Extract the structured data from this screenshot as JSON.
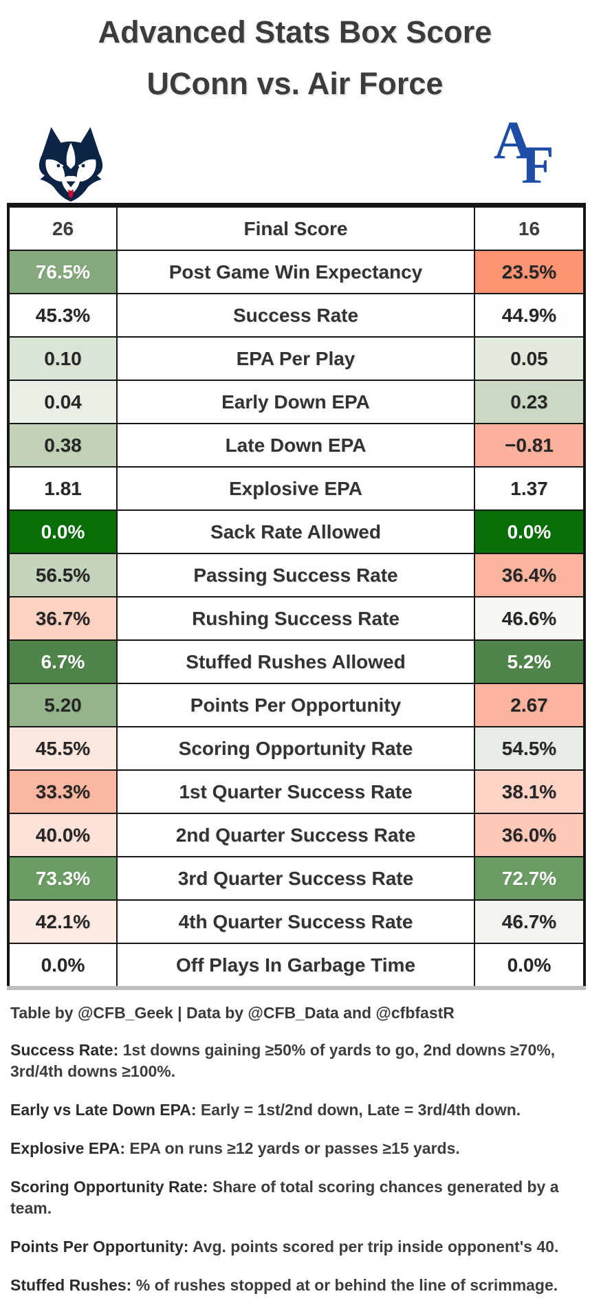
{
  "title": {
    "line1": "Advanced Stats Box Score",
    "line2": "UConn vs. Air Force"
  },
  "teams": {
    "home": {
      "name": "UConn"
    },
    "away": {
      "name": "Air Force",
      "monogram_a": "A",
      "monogram_f": "F"
    }
  },
  "colors": {
    "title_text": "#3c3c3c",
    "table_border": "#161616",
    "table_bottom_border": "#bdbdbd",
    "label_text": "#333333",
    "value_dark_text": "#262626",
    "value_light_text": "#ffffff",
    "uconn_navy": "#0e2446",
    "air_force_blue": "#1d4da6",
    "husky_red": "#cf0a2c",
    "strong_green": "#086f08",
    "medium_green": "#6b9c63",
    "strong_salmon": "#fa9473"
  },
  "table": {
    "rows": [
      {
        "metric": "Final Score",
        "home": {
          "value": "26",
          "bg": "#ffffff",
          "fg": "#3d3d3d"
        },
        "away": {
          "value": "16",
          "bg": "#ffffff",
          "fg": "#3d3d3d"
        }
      },
      {
        "metric": "Post Game Win Expectancy",
        "home": {
          "value": "76.5%",
          "bg": "#85a97d",
          "fg": "#ffffff"
        },
        "away": {
          "value": "23.5%",
          "bg": "#fa9473",
          "fg": "#262626"
        }
      },
      {
        "metric": "Success Rate",
        "home": {
          "value": "45.3%",
          "bg": "#fffdfc",
          "fg": "#262626"
        },
        "away": {
          "value": "44.9%",
          "bg": "#fefefd",
          "fg": "#262626"
        }
      },
      {
        "metric": "EPA Per Play",
        "home": {
          "value": "0.10",
          "bg": "#dbe5d5",
          "fg": "#262626"
        },
        "away": {
          "value": "0.05",
          "bg": "#e3ebde",
          "fg": "#262626"
        }
      },
      {
        "metric": "Early Down EPA",
        "home": {
          "value": "0.04",
          "bg": "#eaf0e6",
          "fg": "#262626"
        },
        "away": {
          "value": "0.23",
          "bg": "#cbd9c4",
          "fg": "#262626"
        }
      },
      {
        "metric": "Late Down EPA",
        "home": {
          "value": "0.38",
          "bg": "#c2d2b9",
          "fg": "#262626"
        },
        "away": {
          "value": "−0.81",
          "bg": "#fbb19b",
          "fg": "#262626"
        }
      },
      {
        "metric": "Explosive EPA",
        "home": {
          "value": "1.81",
          "bg": "#ffffff",
          "fg": "#262626"
        },
        "away": {
          "value": "1.37",
          "bg": "#ffffff",
          "fg": "#262626"
        }
      },
      {
        "metric": "Sack Rate Allowed",
        "home": {
          "value": "0.0%",
          "bg": "#086f08",
          "fg": "#ffffff"
        },
        "away": {
          "value": "0.0%",
          "bg": "#086f08",
          "fg": "#ffffff"
        }
      },
      {
        "metric": "Passing Success Rate",
        "home": {
          "value": "56.5%",
          "bg": "#c5d4bc",
          "fg": "#262626"
        },
        "away": {
          "value": "36.4%",
          "bg": "#fbb59f",
          "fg": "#262626"
        }
      },
      {
        "metric": "Rushing Success Rate",
        "home": {
          "value": "36.7%",
          "bg": "#fcd2c3",
          "fg": "#262626"
        },
        "away": {
          "value": "46.6%",
          "bg": "#f7f7f4",
          "fg": "#262626"
        }
      },
      {
        "metric": "Stuffed Rushes Allowed",
        "home": {
          "value": "6.7%",
          "bg": "#4f8549",
          "fg": "#ffffff"
        },
        "away": {
          "value": "5.2%",
          "bg": "#4f8549",
          "fg": "#ffffff"
        }
      },
      {
        "metric": "Points Per Opportunity",
        "home": {
          "value": "5.20",
          "bg": "#94b48b",
          "fg": "#262626"
        },
        "away": {
          "value": "2.67",
          "bg": "#fbb49e",
          "fg": "#262626"
        }
      },
      {
        "metric": "Scoring Opportunity Rate",
        "home": {
          "value": "45.5%",
          "bg": "#fde8e0",
          "fg": "#262626"
        },
        "away": {
          "value": "54.5%",
          "bg": "#e7ece4",
          "fg": "#262626"
        }
      },
      {
        "metric": "1st Quarter Success Rate",
        "home": {
          "value": "33.3%",
          "bg": "#fbb7a1",
          "fg": "#262626"
        },
        "away": {
          "value": "38.1%",
          "bg": "#fdd3c6",
          "fg": "#262626"
        }
      },
      {
        "metric": "2nd Quarter Success Rate",
        "home": {
          "value": "40.0%",
          "bg": "#fce2d9",
          "fg": "#262626"
        },
        "away": {
          "value": "36.0%",
          "bg": "#fcc8b7",
          "fg": "#262626"
        }
      },
      {
        "metric": "3rd Quarter Success Rate",
        "home": {
          "value": "73.3%",
          "bg": "#6b9c63",
          "fg": "#ffffff"
        },
        "away": {
          "value": "72.7%",
          "bg": "#6b9c63",
          "fg": "#ffffff"
        }
      },
      {
        "metric": "4th Quarter Success Rate",
        "home": {
          "value": "42.1%",
          "bg": "#fdeae2",
          "fg": "#262626"
        },
        "away": {
          "value": "46.7%",
          "bg": "#f2f4ef",
          "fg": "#262626"
        }
      },
      {
        "metric": "Off Plays In Garbage Time",
        "home": {
          "value": "0.0%",
          "bg": "#ffffff",
          "fg": "#262626"
        },
        "away": {
          "value": "0.0%",
          "bg": "#ffffff",
          "fg": "#262626"
        }
      }
    ]
  },
  "footer": {
    "credit": "Table by @CFB_Geek | Data by @CFB_Data and @cfbfastR",
    "notes": [
      {
        "term": "Success Rate:",
        "text": " 1st downs gaining ≥50% of yards to go, 2nd downs ≥70%, 3rd/4th downs ≥100%."
      },
      {
        "term": "Early vs Late Down EPA:",
        "text": " Early = 1st/2nd down, Late = 3rd/4th down."
      },
      {
        "term": "Explosive EPA:",
        "text": " EPA on runs ≥12 yards or passes ≥15 yards."
      },
      {
        "term": "Scoring Opportunity Rate:",
        "text": " Share of total scoring chances generated by a team."
      },
      {
        "term": "Points Per Opportunity:",
        "text": " Avg. points scored per trip inside opponent's 40."
      },
      {
        "term": "Stuffed Rushes:",
        "text": " % of rushes stopped at or behind the line of scrimmage."
      }
    ]
  },
  "chart_data": {
    "type": "table",
    "title": "Advanced Stats Box Score — UConn vs. Air Force",
    "categories": [
      "Final Score",
      "Post Game Win Expectancy",
      "Success Rate",
      "EPA Per Play",
      "Early Down EPA",
      "Late Down EPA",
      "Explosive EPA",
      "Sack Rate Allowed",
      "Passing Success Rate",
      "Rushing Success Rate",
      "Stuffed Rushes Allowed",
      "Points Per Opportunity",
      "Scoring Opportunity Rate",
      "1st Quarter Success Rate",
      "2nd Quarter Success Rate",
      "3rd Quarter Success Rate",
      "4th Quarter Success Rate",
      "Off Plays In Garbage Time"
    ],
    "series": [
      {
        "name": "UConn",
        "values": [
          "26",
          "76.5%",
          "45.3%",
          "0.10",
          "0.04",
          "0.38",
          "1.81",
          "0.0%",
          "56.5%",
          "36.7%",
          "6.7%",
          "5.20",
          "45.5%",
          "33.3%",
          "40.0%",
          "73.3%",
          "42.1%",
          "0.0%"
        ]
      },
      {
        "name": "Air Force",
        "values": [
          "16",
          "23.5%",
          "44.9%",
          "0.05",
          "0.23",
          "−0.81",
          "1.37",
          "0.0%",
          "36.4%",
          "46.6%",
          "5.2%",
          "2.67",
          "54.5%",
          "38.1%",
          "36.0%",
          "72.7%",
          "46.7%",
          "0.0%"
        ]
      }
    ],
    "legend_position": "none",
    "grid": true
  }
}
